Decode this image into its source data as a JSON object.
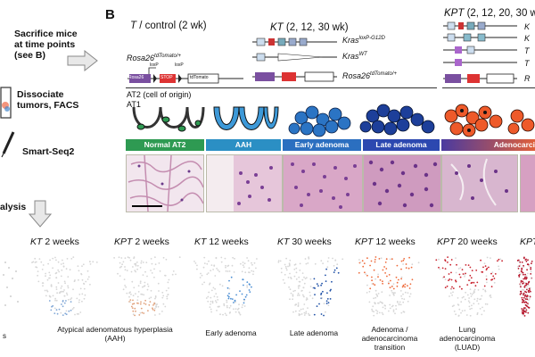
{
  "panel_label": "B",
  "left_steps": {
    "sacrifice": [
      "Sacrifice mice",
      "at time points",
      "(see B)"
    ],
    "dissociate": [
      "Dissociate",
      "tumors, FACS"
    ],
    "smartseq": "Smart-Seq2",
    "analysis": "alysis"
  },
  "groups": {
    "t_control": {
      "italic": "T",
      "rest": " / control (2 wk)"
    },
    "kt": {
      "italic": "KT",
      "rest": " (2, 12, 30 wk)"
    },
    "kpt": {
      "italic": "KPT",
      "rest": " (2, 12, 20, 30 w"
    }
  },
  "alleles": {
    "rosa_t": "Rosa26",
    "rosa_t_sup": "tdTomato/+",
    "kras_mut": "Kras",
    "kras_mut_sup": "loxP-G12D",
    "kras_wt": "Kras",
    "kras_wt_sup": "WT",
    "rosa_kt": "Rosa26",
    "rosa_kt_sup": "tdTomato/+",
    "kpt_partial": [
      "K",
      "K",
      "T",
      "T",
      "R"
    ]
  },
  "construct_labels": {
    "rosa": "Rosa26",
    "stop": "STOP",
    "tdtomato": "tdTomato",
    "loxp": "loxP",
    "loxp2": "loxP"
  },
  "cell_labels": {
    "at2": "AT2 (cell of origin)",
    "at1": "AT1"
  },
  "stages": [
    {
      "label": "Normal AT2",
      "color": "#2e9a52"
    },
    {
      "label": "AAH",
      "color": "#2b8fc4"
    },
    {
      "label": "Early adenoma",
      "color": "#2b6fc0"
    },
    {
      "label": "Late adenoma",
      "color": "#2c48b0"
    },
    {
      "label": "Adenocarci",
      "color": "#e0603a"
    }
  ],
  "umap_panels": [
    {
      "italic": "KT",
      "rest": " 2 weeks",
      "caption": ""
    },
    {
      "italic": "KPT",
      "rest": " 2 weeks",
      "caption": ""
    },
    {
      "italic": "KT",
      "rest": " 12 weeks",
      "caption": "Early adenoma"
    },
    {
      "italic": "KT",
      "rest": " 30 weeks",
      "caption": "Late adenoma"
    },
    {
      "italic": "KPT",
      "rest": " 12 weeks",
      "caption": "Adenoma / adenocarcinoma transition"
    },
    {
      "italic": "KPT",
      "rest": " 20 weeks",
      "caption": "Lung adenocarcinoma (LUAD)"
    },
    {
      "italic": "KPT",
      "rest": "",
      "caption": ""
    }
  ],
  "aah_caption": [
    "Atypical adenomatous hyperplasia",
    "(AAH)"
  ],
  "left_cut_caption": "s",
  "colors": {
    "at2_green": "#2e9a52",
    "kt_blue": "#1f6fc4",
    "kt_dark": "#123a8c",
    "kpt_orange": "#ee5a2a",
    "kpt_red": "#b5152a",
    "he_pink": "#d9a7c7",
    "he_purple": "#8a4d9c"
  }
}
